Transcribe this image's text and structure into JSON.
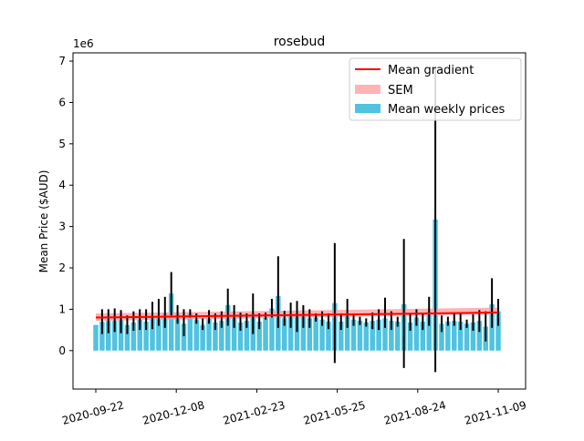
{
  "chart_data": {
    "type": "bar",
    "title": "rosebud",
    "ylabel": "Mean Price ($AUD)",
    "xlabel": "",
    "y_scale_label": "1e6",
    "ylim": [
      -0.93,
      7.2
    ],
    "y_ticks": [
      0,
      1,
      2,
      3,
      4,
      5,
      6,
      7
    ],
    "x_tick_labels": [
      "2020-09-22",
      "2020-12-08",
      "2021-02-23",
      "2021-05-25",
      "2021-08-24",
      "2021-11-09"
    ],
    "legend": {
      "position": "top-right",
      "entries": [
        "Mean gradient",
        "SEM",
        "Mean weekly prices"
      ]
    },
    "colors": {
      "bars": "#4fc3df",
      "gradient": "#ff0000",
      "sem": "#ff9999",
      "error": "#000000"
    },
    "series": [
      {
        "name": "Mean weekly prices",
        "values": [
          0.62,
          0.7,
          0.72,
          0.72,
          0.74,
          0.62,
          0.68,
          0.75,
          0.7,
          0.82,
          0.78,
          0.9,
          1.38,
          0.88,
          0.65,
          0.9,
          0.75,
          0.62,
          0.78,
          0.68,
          0.72,
          1.1,
          0.8,
          0.68,
          0.72,
          0.88,
          0.7,
          0.82,
          1.02,
          1.32,
          0.78,
          0.85,
          0.9,
          0.88,
          0.78,
          0.8,
          0.75,
          0.7,
          1.15,
          0.7,
          0.85,
          0.75,
          0.72,
          0.68,
          0.72,
          0.75,
          0.78,
          0.72,
          0.7,
          1.12,
          0.68,
          0.8,
          0.7,
          0.95,
          3.17,
          0.65,
          0.7,
          0.72,
          0.7,
          0.65,
          0.68,
          0.72,
          0.58,
          1.12,
          0.95
        ],
        "err_low": [
          0.62,
          0.4,
          0.42,
          0.45,
          0.42,
          0.4,
          0.48,
          0.5,
          0.5,
          0.52,
          0.6,
          0.55,
          0.85,
          0.65,
          0.35,
          0.8,
          0.65,
          0.5,
          0.65,
          0.5,
          0.55,
          0.6,
          0.55,
          0.48,
          0.55,
          0.4,
          0.52,
          0.75,
          0.8,
          0.55,
          0.6,
          0.55,
          0.45,
          0.55,
          0.55,
          0.7,
          0.6,
          0.52,
          -0.3,
          0.5,
          0.55,
          0.6,
          0.62,
          0.58,
          0.52,
          0.5,
          0.55,
          0.5,
          0.58,
          -0.42,
          0.48,
          0.6,
          0.5,
          0.6,
          -0.52,
          0.45,
          0.6,
          0.6,
          0.5,
          0.55,
          0.48,
          0.45,
          0.22,
          0.55,
          0.6
        ],
        "err_high": [
          0.62,
          1.0,
          1.0,
          1.02,
          0.98,
          0.85,
          0.95,
          1.0,
          1.0,
          1.18,
          1.25,
          1.3,
          1.9,
          1.1,
          1.0,
          1.0,
          0.9,
          0.78,
          0.98,
          0.9,
          0.95,
          1.5,
          1.1,
          0.92,
          0.9,
          1.38,
          0.9,
          0.92,
          1.25,
          2.28,
          0.96,
          1.16,
          1.2,
          1.1,
          1.0,
          0.9,
          0.95,
          0.9,
          2.6,
          0.9,
          1.25,
          0.9,
          0.82,
          0.78,
          0.92,
          1.0,
          1.28,
          0.95,
          0.82,
          2.7,
          0.88,
          1.0,
          0.9,
          1.3,
          6.85,
          0.85,
          0.82,
          0.92,
          0.9,
          0.75,
          0.88,
          0.98,
          0.95,
          1.75,
          1.25
        ]
      },
      {
        "name": "Mean gradient",
        "line": [
          0.8,
          0.92
        ]
      },
      {
        "name": "SEM",
        "band_low": [
          0.72,
          0.88
        ],
        "band_high": [
          0.9,
          1.04
        ]
      }
    ]
  }
}
